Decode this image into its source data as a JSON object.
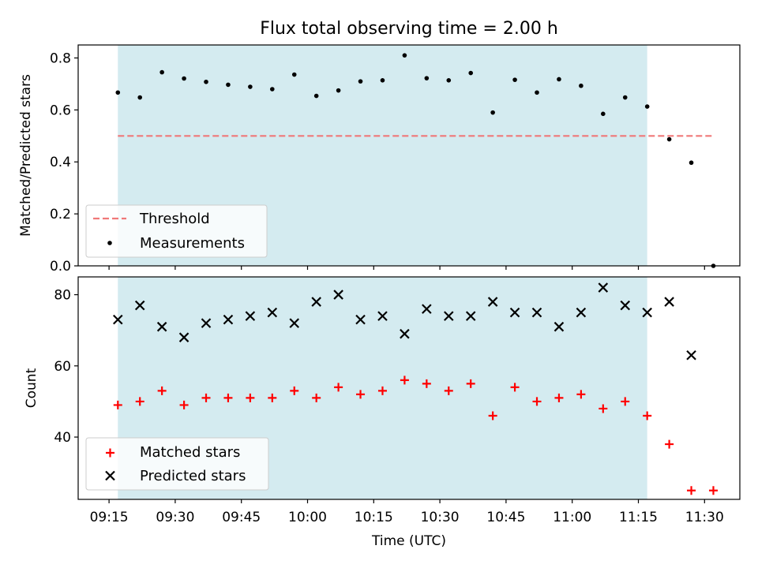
{
  "chart_data": [
    {
      "type": "scatter",
      "title": "Flux total observing time = 2.00 h",
      "xlabel": "",
      "ylabel": "Matched/Predicted stars",
      "ylim": [
        0,
        0.85
      ],
      "yticks": [
        "0.0",
        "0.2",
        "0.4",
        "0.6",
        "0.8"
      ],
      "xlim": [
        "09:08",
        "11:38"
      ],
      "grid": false,
      "legend_position": "lower-left",
      "observing_window": {
        "start": "09:17",
        "end": "11:17",
        "color": "#d4ebf0"
      },
      "threshold": {
        "name": "Threshold",
        "value": 0.5,
        "x_start": "09:17",
        "x_end": "11:32",
        "color": "#f07878"
      },
      "series": [
        {
          "name": "Measurements",
          "marker": "dot",
          "color": "#000000",
          "x": [
            "09:17",
            "09:22",
            "09:27",
            "09:32",
            "09:37",
            "09:42",
            "09:47",
            "09:52",
            "09:57",
            "10:02",
            "10:07",
            "10:12",
            "10:17",
            "10:22",
            "10:27",
            "10:32",
            "10:37",
            "10:42",
            "10:47",
            "10:52",
            "10:57",
            "11:02",
            "11:07",
            "11:12",
            "11:17",
            "11:22",
            "11:27",
            "11:32"
          ],
          "values": [
            0.667,
            0.648,
            0.745,
            0.721,
            0.708,
            0.697,
            0.689,
            0.68,
            0.736,
            0.654,
            0.675,
            0.71,
            0.714,
            0.81,
            0.722,
            0.714,
            0.742,
            0.59,
            0.716,
            0.667,
            0.718,
            0.693,
            0.585,
            0.648,
            0.613,
            0.487,
            0.397,
            0.0
          ]
        }
      ]
    },
    {
      "type": "scatter",
      "xlabel": "Time (UTC)",
      "ylabel": "Count",
      "ylim": [
        22.5,
        85
      ],
      "yticks": [
        "40",
        "60",
        "80"
      ],
      "xticks": [
        "09:15",
        "09:30",
        "09:45",
        "10:00",
        "10:15",
        "10:30",
        "10:45",
        "11:00",
        "11:15",
        "11:30"
      ],
      "xlim": [
        "09:08",
        "11:38"
      ],
      "grid": false,
      "legend_position": "lower-left",
      "observing_window": {
        "start": "09:17",
        "end": "11:17",
        "color": "#d4ebf0"
      },
      "series": [
        {
          "name": "Matched stars",
          "marker": "plus",
          "color": "#ff0000",
          "x": [
            "09:17",
            "09:22",
            "09:27",
            "09:32",
            "09:37",
            "09:42",
            "09:47",
            "09:52",
            "09:57",
            "10:02",
            "10:07",
            "10:12",
            "10:17",
            "10:22",
            "10:27",
            "10:32",
            "10:37",
            "10:42",
            "10:47",
            "10:52",
            "10:57",
            "11:02",
            "11:07",
            "11:12",
            "11:17",
            "11:22",
            "11:27",
            "11:32"
          ],
          "values": [
            49,
            50,
            53,
            49,
            51,
            51,
            51,
            51,
            53,
            51,
            54,
            52,
            53,
            56,
            55,
            53,
            55,
            46,
            54,
            50,
            51,
            52,
            48,
            50,
            46,
            38,
            25,
            25
          ]
        },
        {
          "name": "Predicted stars",
          "marker": "x",
          "color": "#000000",
          "x": [
            "09:17",
            "09:22",
            "09:27",
            "09:32",
            "09:37",
            "09:42",
            "09:47",
            "09:52",
            "09:57",
            "10:02",
            "10:07",
            "10:12",
            "10:17",
            "10:22",
            "10:27",
            "10:32",
            "10:37",
            "10:42",
            "10:47",
            "10:52",
            "10:57",
            "11:02",
            "11:07",
            "11:12",
            "11:17",
            "11:22",
            "11:27"
          ],
          "values": [
            73,
            77,
            71,
            68,
            72,
            73,
            74,
            75,
            72,
            78,
            80,
            73,
            74,
            69,
            76,
            74,
            74,
            78,
            75,
            75,
            71,
            75,
            82,
            77,
            75,
            78,
            63
          ]
        }
      ]
    }
  ]
}
